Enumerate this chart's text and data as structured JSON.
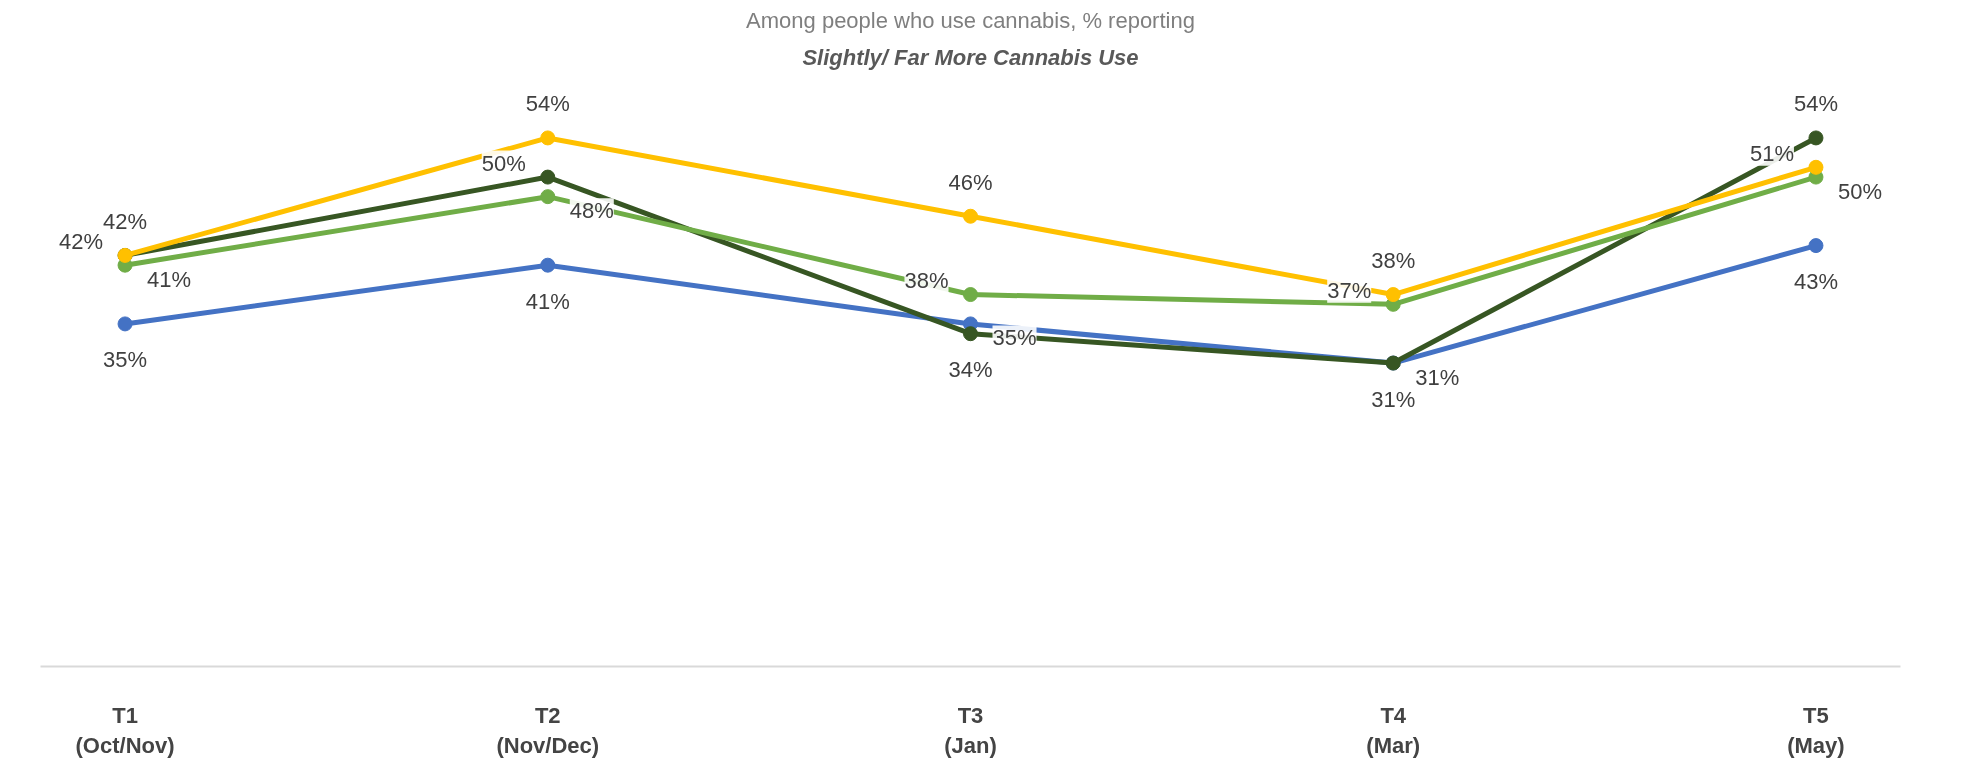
{
  "chart_data": {
    "type": "line",
    "title": "Among people who use cannabis, % reporting",
    "subtitle": "Slightly/ Far More Cannabis Use",
    "categories": [
      "T1\n(Oct/Nov)",
      "T2\n(Nov/Dec)",
      "T3\n(Jan)",
      "T4\n(Mar)",
      "T5\n(May)"
    ],
    "series": [
      {
        "color": "#4472c4",
        "values": [
          35,
          41,
          35,
          31,
          43
        ],
        "value_labels": [
          "35%",
          "41%",
          "35%",
          "31%",
          "43%"
        ]
      },
      {
        "color": "#375623",
        "values": [
          42,
          50,
          34,
          31,
          54
        ],
        "value_labels": [
          "42%",
          "50%",
          "34%",
          "31%",
          "54%"
        ]
      },
      {
        "color": "#70ad47",
        "values": [
          41,
          48,
          38,
          37,
          50
        ],
        "value_labels": [
          "41%",
          "48%",
          "38%",
          "37%",
          "50%"
        ]
      },
      {
        "color": "#ffc000",
        "values": [
          42,
          54,
          46,
          38,
          51
        ],
        "value_labels": [
          "42%",
          "54%",
          "46%",
          "38%",
          "51%"
        ]
      }
    ],
    "marker": "circle",
    "line_style": "solid",
    "tick_labels": "x"
  }
}
